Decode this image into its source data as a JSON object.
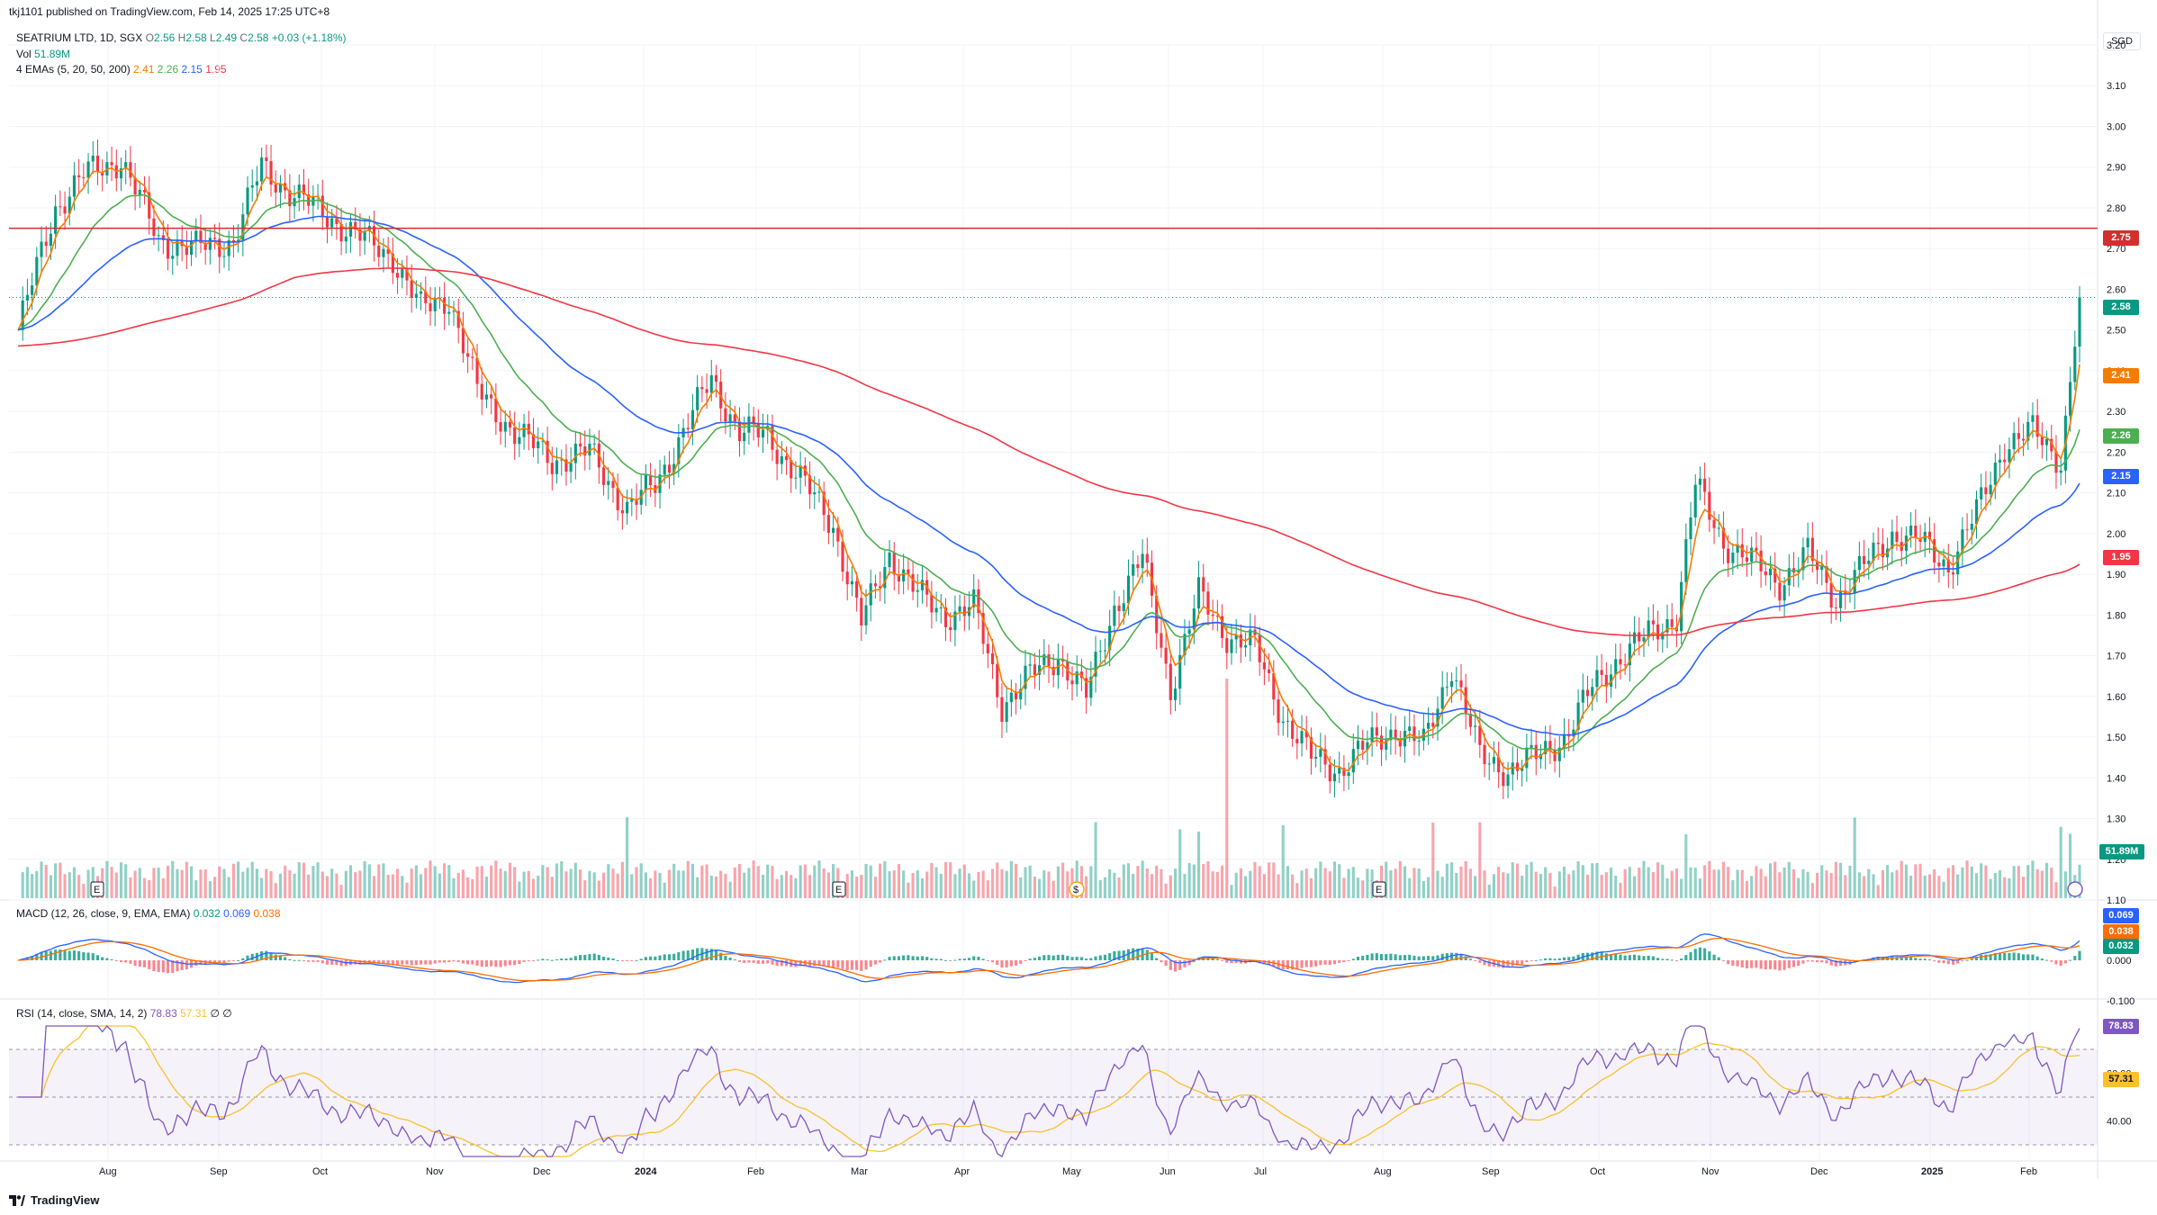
{
  "header": {
    "published": "tkj1101 published on TradingView.com, Feb 14, 2025 17:25 UTC+8"
  },
  "legend": {
    "symbol": "SEATRIUM LTD, 1D, SGX",
    "open_label": "O",
    "open": "2.56",
    "high_label": "H",
    "high": "2.58",
    "low_label": "L",
    "low": "2.49",
    "close_label": "C",
    "close": "2.58",
    "change": "+0.03 (+1.18%)",
    "vol_label": "Vol",
    "vol": "51.89M",
    "ema_label": "4 EMAs (5, 20, 50, 200)",
    "ema5": "2.41",
    "ema20": "2.26",
    "ema50": "2.15",
    "ema200": "1.95"
  },
  "currency": "SGD",
  "colors": {
    "up": "#089981",
    "down": "#f23645",
    "ema5": "#f57c00",
    "ema20": "#4caf50",
    "ema50": "#2962ff",
    "ema200": "#f23645",
    "macd": "#2962ff",
    "signal": "#ff6d00",
    "rsi": "#7e57c2",
    "rsi_ma": "#fbc02d",
    "resistance": "#d32f2f"
  },
  "price_axis": [
    "3.20",
    "3.10",
    "3.00",
    "2.90",
    "2.80",
    "2.70",
    "2.60",
    "2.50",
    "2.40",
    "2.30",
    "2.20",
    "2.10",
    "2.00",
    "1.90",
    "1.80",
    "1.70",
    "1.60",
    "1.50",
    "1.40",
    "1.30",
    "1.20",
    "1.10"
  ],
  "price_badges": {
    "resistance": "2.75",
    "last": "2.58",
    "ema5": "2.41",
    "ema20": "2.26",
    "ema50": "2.15",
    "ema200": "1.95",
    "volume": "51.89M"
  },
  "macd": {
    "title": "MACD (12, 26, close, 9, EMA, EMA)",
    "hist": "0.032",
    "macd": "0.069",
    "signal": "0.038",
    "axis": [
      "0.000",
      "-0.100"
    ]
  },
  "rsi": {
    "title": "RSI (14, close, SMA, 14, 2)",
    "rsi": "78.83",
    "ma": "57.31",
    "extra": "∅ ∅",
    "axis": [
      "60.00",
      "40.00"
    ]
  },
  "x_axis": [
    {
      "label": "Aug",
      "bold": false
    },
    {
      "label": "Sep",
      "bold": false
    },
    {
      "label": "Oct",
      "bold": false
    },
    {
      "label": "Nov",
      "bold": false
    },
    {
      "label": "Dec",
      "bold": false
    },
    {
      "label": "2024",
      "bold": true
    },
    {
      "label": "Feb",
      "bold": false
    },
    {
      "label": "Mar",
      "bold": false
    },
    {
      "label": "Apr",
      "bold": false
    },
    {
      "label": "May",
      "bold": false
    },
    {
      "label": "Jun",
      "bold": false
    },
    {
      "label": "Jul",
      "bold": false
    },
    {
      "label": "Aug",
      "bold": false
    },
    {
      "label": "Sep",
      "bold": false
    },
    {
      "label": "Oct",
      "bold": false
    },
    {
      "label": "Nov",
      "bold": false
    },
    {
      "label": "Dec",
      "bold": false
    },
    {
      "label": "2025",
      "bold": true
    },
    {
      "label": "Feb",
      "bold": false
    }
  ],
  "events": {
    "earnings": "E",
    "dividend": "$"
  },
  "footer": {
    "brand": "TradingView"
  },
  "chart_data": {
    "type": "line",
    "symbol": "SEATRIUM LTD",
    "timeframe": "1D",
    "ylim": [
      1.1,
      3.2
    ],
    "resistance_level": 2.75,
    "last_close": 2.58,
    "x": [
      "Jul",
      "Aug",
      "Sep",
      "Oct",
      "Nov",
      "Dec",
      "2024",
      "Feb",
      "Mar",
      "Apr",
      "May",
      "Jun",
      "Jul",
      "Aug",
      "Sep",
      "Oct",
      "Nov",
      "Dec",
      "2025",
      "Feb"
    ],
    "series": [
      {
        "name": "close",
        "values": [
          2.5,
          2.85,
          2.88,
          2.75,
          2.28,
          2.05,
          2.35,
          2.2,
          1.78,
          1.8,
          1.92,
          1.72,
          1.4,
          1.48,
          1.6,
          2.05,
          1.88,
          2.02,
          2.25,
          2.58
        ]
      },
      {
        "name": "ema5",
        "values": [
          2.55,
          2.82,
          2.86,
          2.74,
          2.3,
          2.08,
          2.32,
          2.22,
          1.8,
          1.78,
          1.88,
          1.74,
          1.42,
          1.47,
          1.58,
          2.0,
          1.9,
          2.0,
          2.22,
          2.41
        ]
      },
      {
        "name": "ema20",
        "values": [
          2.52,
          2.78,
          2.84,
          2.76,
          2.36,
          2.12,
          2.28,
          2.25,
          1.86,
          1.76,
          1.84,
          1.76,
          1.46,
          1.46,
          1.55,
          1.92,
          1.92,
          1.98,
          2.2,
          2.26
        ]
      },
      {
        "name": "ema50",
        "values": [
          2.48,
          2.68,
          2.74,
          2.74,
          2.45,
          2.22,
          2.24,
          2.26,
          1.96,
          1.8,
          1.78,
          1.72,
          1.56,
          1.5,
          1.52,
          1.8,
          1.88,
          1.94,
          2.1,
          2.15
        ]
      },
      {
        "name": "ema200",
        "values": [
          2.46,
          2.52,
          2.56,
          2.6,
          2.5,
          2.42,
          2.38,
          2.34,
          2.24,
          2.14,
          2.06,
          2.0,
          1.88,
          1.8,
          1.76,
          1.78,
          1.82,
          1.86,
          1.91,
          1.95
        ]
      }
    ],
    "macd": {
      "macd": 0.069,
      "signal": 0.038,
      "hist": 0.032
    },
    "rsi": {
      "rsi": 78.83,
      "ma": 57.31,
      "levels": [
        70,
        30
      ]
    }
  }
}
